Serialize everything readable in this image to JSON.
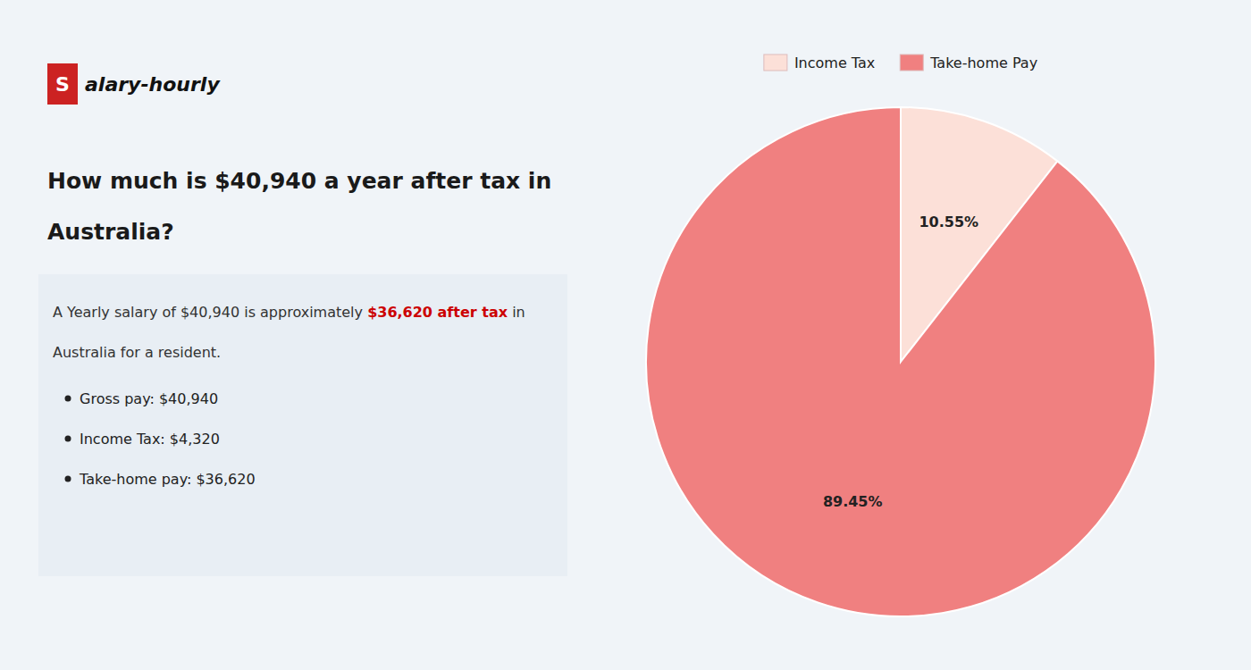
{
  "chart_data": {
    "type": "pie",
    "title": [
      "How much is $40,940 a year after tax in",
      "Australia?"
    ],
    "categories": [
      "Income Tax",
      "Take-home Pay"
    ],
    "values": [
      10.55,
      89.45
    ],
    "value_labels": [
      "10.55%",
      "89.45%"
    ],
    "colors": [
      "#fce0d8",
      "#f08080"
    ],
    "data_labels": true,
    "legend": "top",
    "annotations": [
      {
        "text": "S"
      },
      {
        "text": "alary-hourly"
      },
      {
        "text": "A Yearly salary of $40,940 is approximately "
      },
      {
        "text": "$36,620 after tax",
        "color": "#cc0000"
      },
      {
        "text": " in"
      },
      {
        "text": "Australia for a resident."
      },
      {
        "text": "Gross pay: $40,940"
      },
      {
        "text": "Income Tax: $4,320"
      },
      {
        "text": "Take-home pay: $36,620"
      }
    ]
  }
}
